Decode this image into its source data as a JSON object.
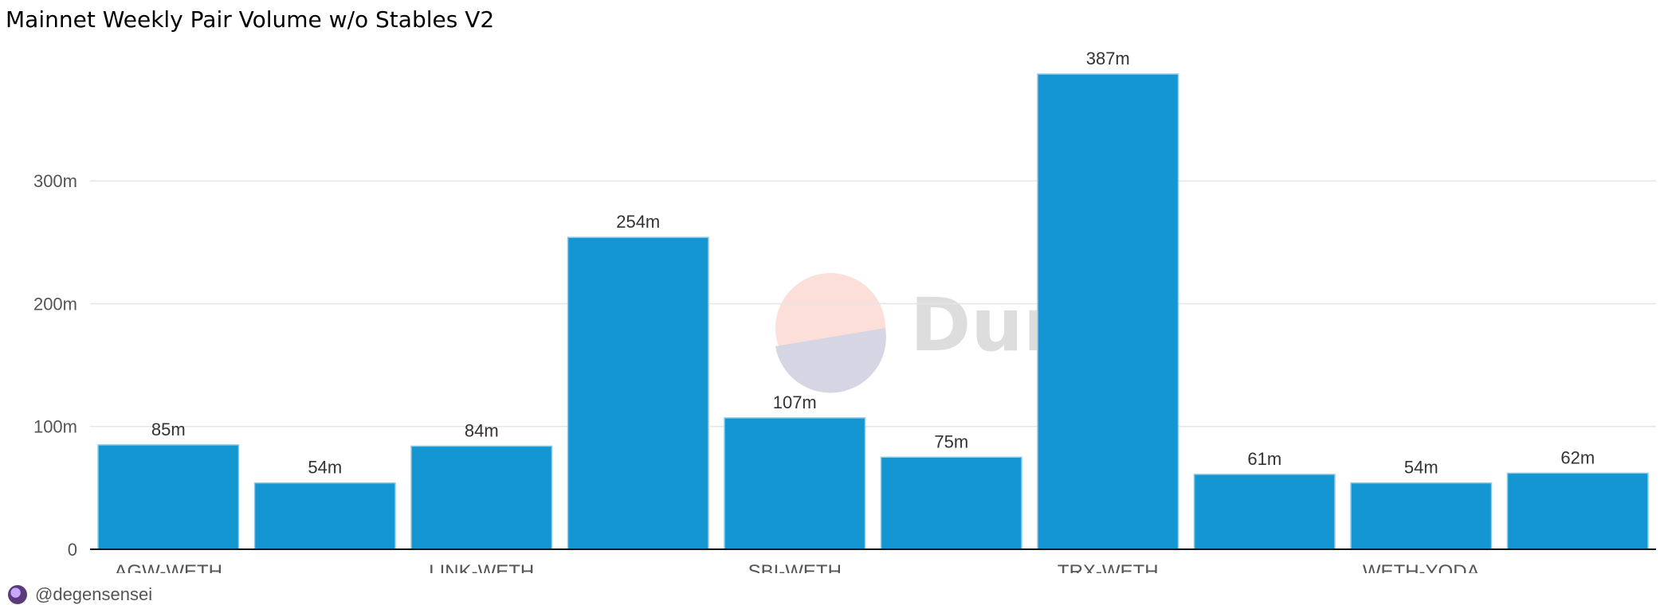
{
  "chart_data": {
    "type": "bar",
    "title": "Mainnet Weekly Pair Volume w/o Stables V2",
    "categories": [
      "AGW-WETH",
      "",
      "LINK-WETH",
      "",
      "SBI-WETH",
      "",
      "TRX-WETH",
      "",
      "WETH-YODA",
      ""
    ],
    "values": [
      85,
      54,
      84,
      254,
      107,
      75,
      387,
      61,
      54,
      62
    ],
    "data_labels": [
      "85m",
      "54m",
      "84m",
      "254m",
      "107m",
      "75m",
      "387m",
      "61m",
      "54m",
      "62m"
    ],
    "ylim": [
      0,
      387
    ],
    "yticks": [
      0,
      100,
      200,
      300
    ],
    "ytick_labels": [
      "0",
      "100m",
      "200m",
      "300m"
    ],
    "xlabel": "",
    "ylabel": "",
    "grid": true,
    "bar_color": "#1396d1",
    "watermark": "Dune"
  },
  "footer": {
    "author": "@degensensei"
  }
}
